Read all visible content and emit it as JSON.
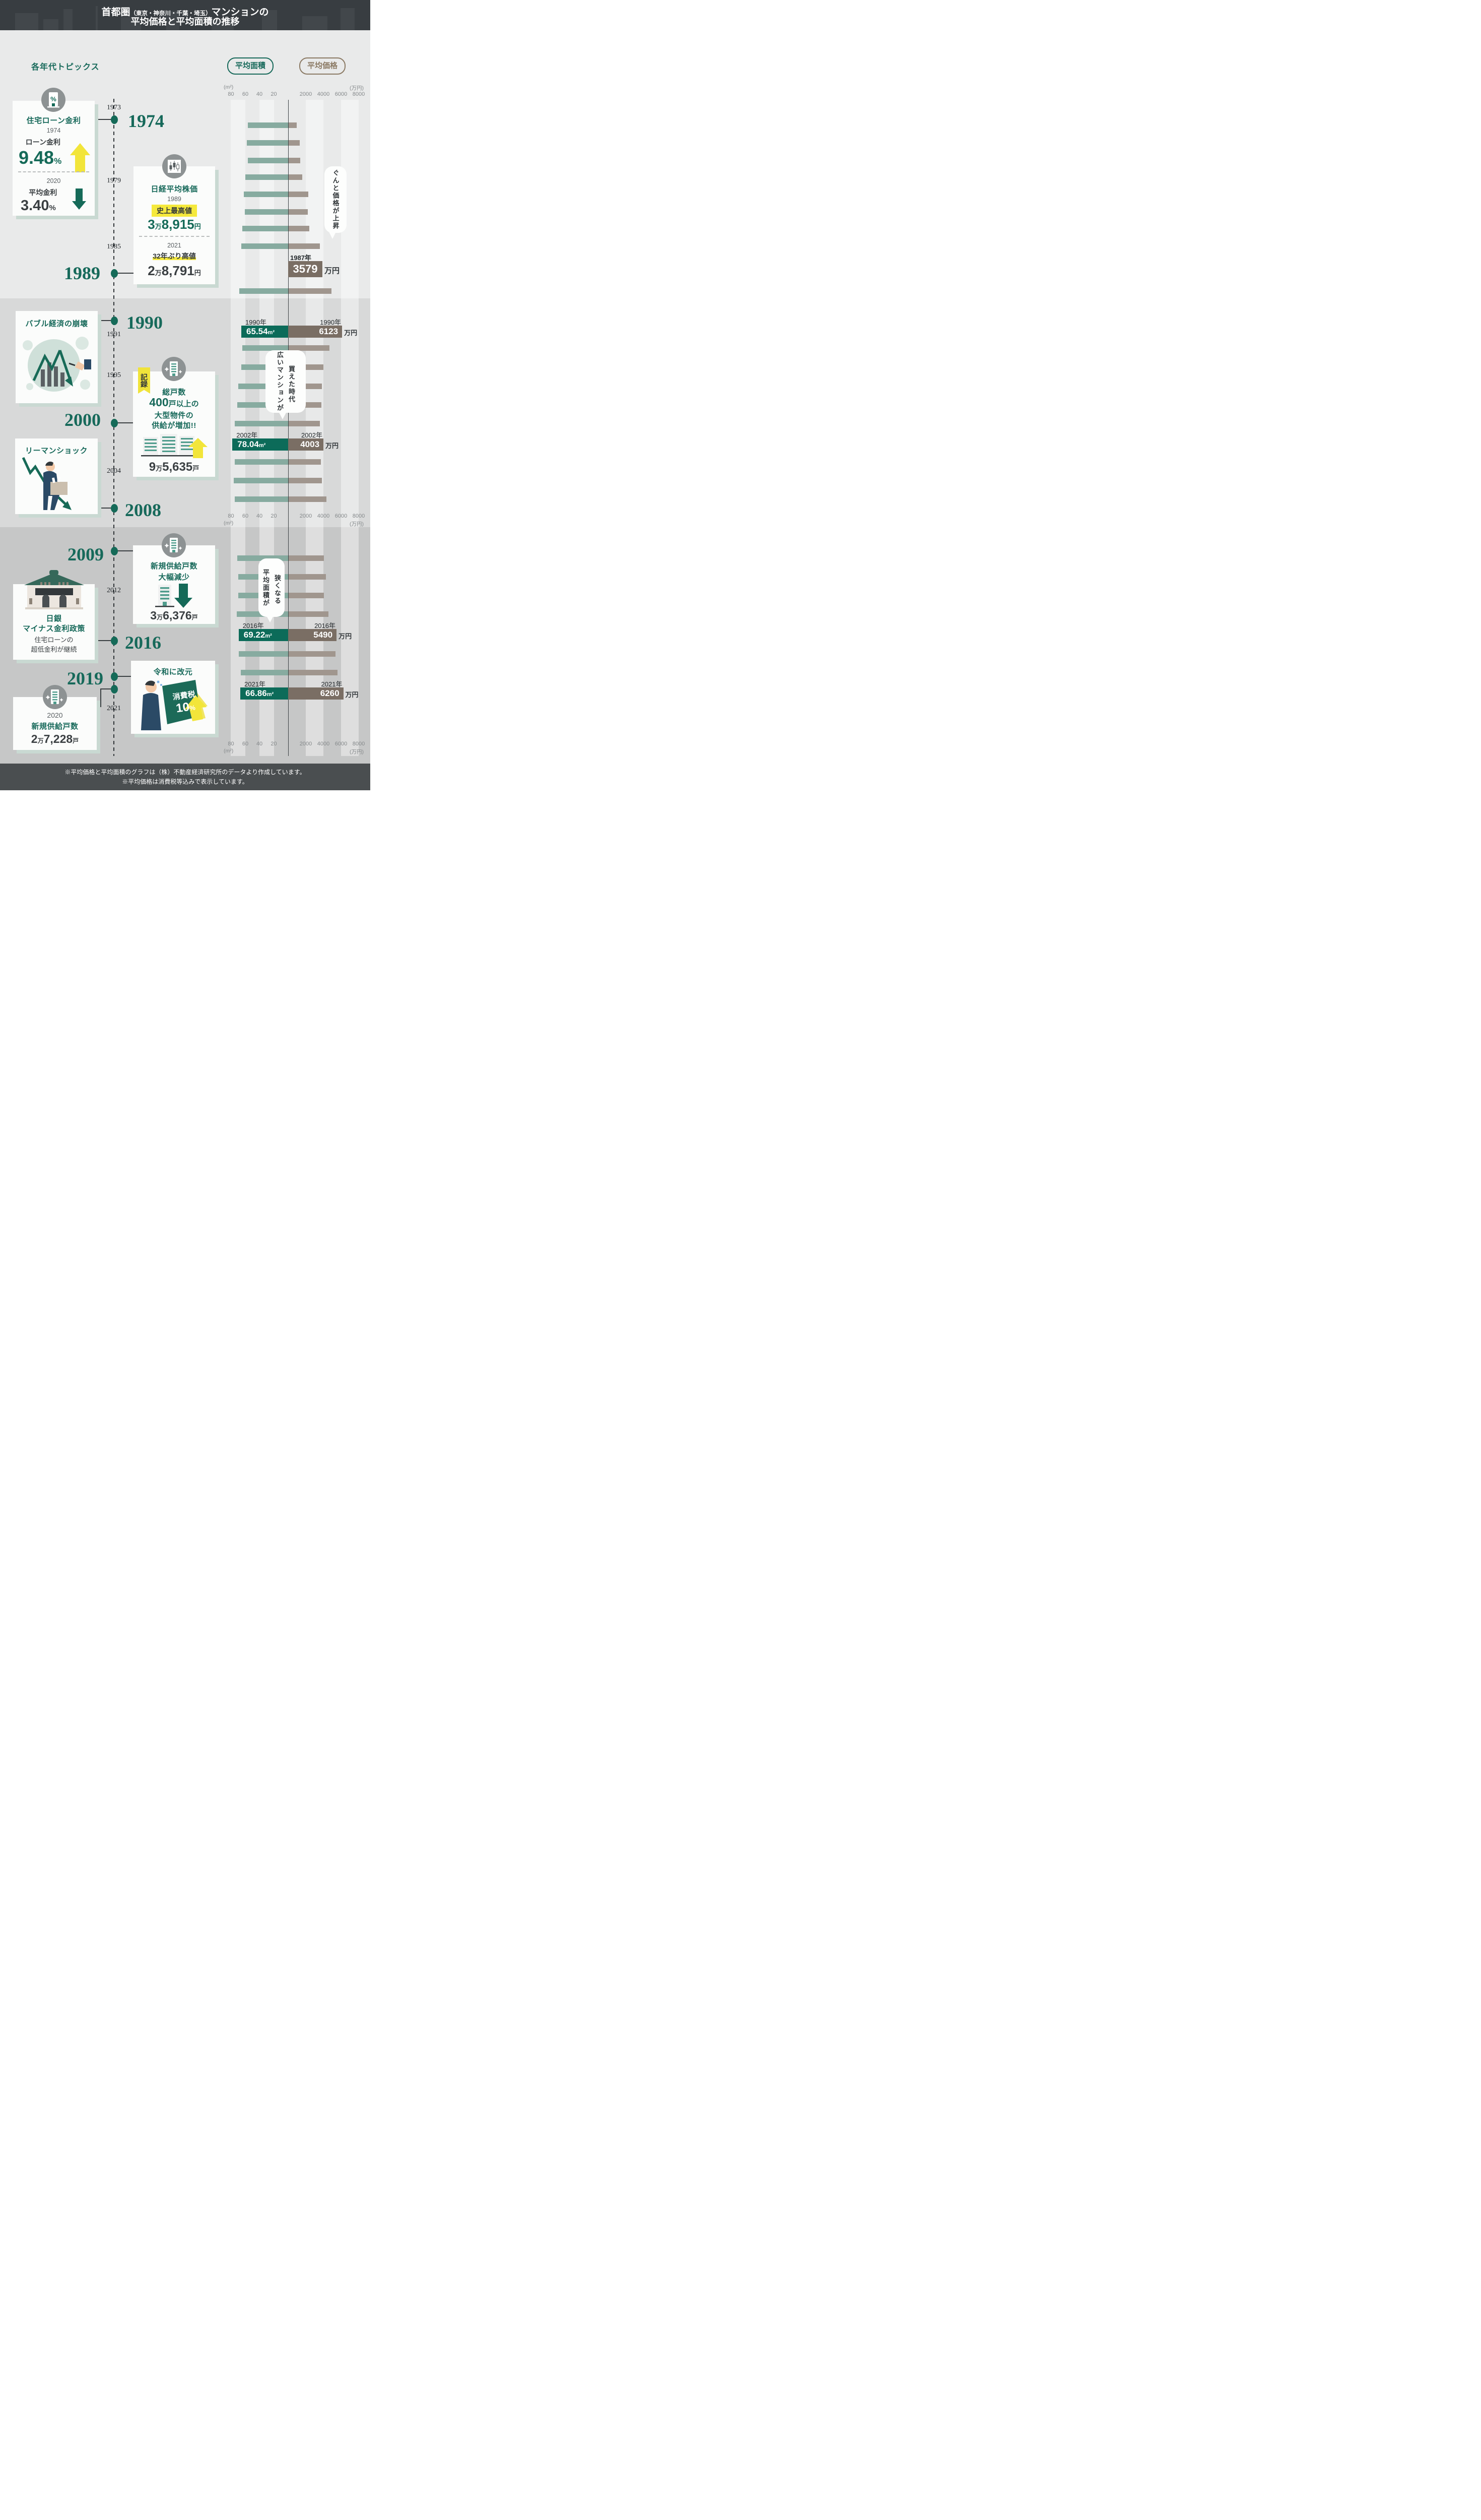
{
  "header": {
    "title_part1": "首都圏",
    "title_part2": "（東京・神奈川・千葉・埼玉）",
    "title_part3": "マンションの",
    "title_line2": "平均価格と平均面積の推移"
  },
  "topics_title": "各年代トピックス",
  "legend": {
    "area": "平均面積",
    "price": "平均価格"
  },
  "axis": {
    "area_unit": "(m²)",
    "price_unit": "(万円)",
    "area_ticks": [
      "80",
      "60",
      "40",
      "20"
    ],
    "price_ticks": [
      "2000",
      "4000",
      "6000",
      "8000"
    ]
  },
  "timeline": [
    {
      "year": "1973",
      "style": "small"
    },
    {
      "year": "1974",
      "style": "big",
      "dot": true
    },
    {
      "year": "1979",
      "style": "small"
    },
    {
      "year": "1985",
      "style": "small"
    },
    {
      "year": "1989",
      "style": "big",
      "dot": true
    },
    {
      "year": "1990",
      "style": "big",
      "dot": true
    },
    {
      "year": "1991",
      "style": "small"
    },
    {
      "year": "1995",
      "style": "small"
    },
    {
      "year": "2000",
      "style": "big",
      "dot": true
    },
    {
      "year": "2004",
      "style": "small"
    },
    {
      "year": "2008",
      "style": "big",
      "dot": true
    },
    {
      "year": "2009",
      "style": "big",
      "dot": true
    },
    {
      "year": "2012",
      "style": "small"
    },
    {
      "year": "2016",
      "style": "big",
      "dot": true
    },
    {
      "year": "2019",
      "style": "big",
      "dot": true
    },
    {
      "year": "2021",
      "style": "small"
    }
  ],
  "cards": {
    "loan_rate": {
      "title": "住宅ローン金利",
      "year1": "1974",
      "label1": "ローン金利",
      "value1": "9.48",
      "unit1": "%",
      "year2": "2020",
      "label2": "平均金利",
      "value2": "3.40",
      "unit2": "%"
    },
    "nikkei": {
      "title": "日経平均株価",
      "year1": "1989",
      "badge1": "史上最高値",
      "value1_num1": "3",
      "value1_unit1": "万",
      "value1_num2": "8,915",
      "value1_unit2": "円",
      "year2": "2021",
      "badge2": "32年ぶり高値",
      "value2_num1": "2",
      "value2_unit1": "万",
      "value2_num2": "8,791",
      "value2_unit2": "円"
    },
    "bubble": {
      "title": "バブル経済の崩壊"
    },
    "record": {
      "ribbon": "記録",
      "line1": "総戸数",
      "line2_num": "400",
      "line2_rest": "戸以上の",
      "line3": "大型物件の",
      "line4": "供給が増加!!",
      "value_num1": "9",
      "value_unit1": "万",
      "value_num2": "5,635",
      "value_unit2": "戸"
    },
    "lehman": {
      "title": "リーマンショック"
    },
    "supply_drop": {
      "line1": "新規供給戸数",
      "line2": "大幅減少",
      "value_num1": "3",
      "value_unit1": "万",
      "value_num2": "6,376",
      "value_unit2": "戸"
    },
    "boj": {
      "line1": "日銀",
      "line2": "マイナス金利政策",
      "sub1": "住宅ローンの",
      "sub2": "超低金利が継続"
    },
    "reiwa": {
      "title": "令和に改元",
      "board_line1": "消費税",
      "board_value": "10",
      "board_unit": "%"
    },
    "supply_2020": {
      "year": "2020",
      "title": "新規供給戸数",
      "value_num1": "2",
      "value_unit1": "万",
      "value_num2": "7,228",
      "value_unit2": "戸"
    }
  },
  "callouts": {
    "bubble1": [
      "ぐんと価格が上昇"
    ],
    "bubble2": [
      "広いマンションが",
      "買えた時代"
    ],
    "bubble3": [
      "平均面積が",
      "狭くなる"
    ]
  },
  "chart_data": {
    "type": "bar",
    "title": "首都圏マンションの平均価格と平均面積の推移",
    "orientation": "horizontal-bidirectional",
    "series": [
      {
        "name": "平均面積",
        "unit": "m²",
        "direction": "left",
        "axis_range": [
          0,
          80
        ],
        "color": "#87aba0",
        "highlight_color": "#0c6b59"
      },
      {
        "name": "平均価格",
        "unit": "万円",
        "direction": "right",
        "axis_range": [
          0,
          8000
        ],
        "color": "#a0968e",
        "highlight_color": "#7a6e64"
      }
    ],
    "sections": [
      {
        "period": "1973-1989",
        "rows": [
          {
            "year": 1973,
            "area": 56.4,
            "price": 970
          },
          {
            "year": 1975,
            "area": 58.1,
            "price": 1290
          },
          {
            "year": 1977,
            "area": 56.4,
            "price": 1370
          },
          {
            "year": 1979,
            "area": 60.1,
            "price": 1590
          },
          {
            "year": 1981,
            "area": 61.7,
            "price": 2290
          },
          {
            "year": 1983,
            "area": 60.6,
            "price": 2230
          },
          {
            "year": 1985,
            "area": 64.0,
            "price": 2390
          },
          {
            "year": 1987,
            "area": 65.6,
            "price": 3579,
            "price_callout": {
              "year_text": "1987年",
              "value": "3579",
              "unit": "万円"
            }
          },
          {
            "year": 1989,
            "area": 68.7,
            "price": 4940
          }
        ]
      },
      {
        "period": "1990-2008",
        "rows": [
          {
            "year": 1990,
            "area": 65.54,
            "price": 6123,
            "highlight": true,
            "year_text": "1990年",
            "area_label": "65.54",
            "area_unit": "m²",
            "price_label": "6123",
            "price_unit": "万円"
          },
          {
            "year": 1992,
            "area": 63.9,
            "price": 4670
          },
          {
            "year": 1994,
            "area": 65.6,
            "price": 3980
          },
          {
            "year": 1996,
            "area": 69.6,
            "price": 3840
          },
          {
            "year": 1998,
            "area": 71.3,
            "price": 3760
          },
          {
            "year": 2000,
            "area": 74.9,
            "price": 3600
          },
          {
            "year": 2002,
            "area": 78.04,
            "price": 4003,
            "highlight": true,
            "year_text": "2002年",
            "area_label": "78.04",
            "area_unit": "m²",
            "price_label": "4003",
            "price_unit": "万円"
          },
          {
            "year": 2004,
            "area": 74.9,
            "price": 3740
          },
          {
            "year": 2006,
            "area": 75.9,
            "price": 3800
          },
          {
            "year": 2008,
            "area": 74.9,
            "price": 4360
          }
        ]
      },
      {
        "period": "2009-2021",
        "rows": [
          {
            "year": 2009,
            "area": 71.0,
            "price": 4030
          },
          {
            "year": 2011,
            "area": 69.6,
            "price": 4300
          },
          {
            "year": 2013,
            "area": 69.6,
            "price": 4060
          },
          {
            "year": 2015,
            "area": 71.6,
            "price": 4570
          },
          {
            "year": 2016,
            "area": 69.22,
            "price": 5490,
            "highlight": true,
            "year_text": "2016年",
            "area_label": "69.22",
            "area_unit": "m²",
            "price_label": "5490",
            "price_unit": "万円"
          },
          {
            "year": 2018,
            "area": 68.9,
            "price": 5370
          },
          {
            "year": 2020,
            "area": 66.3,
            "price": 5590
          },
          {
            "year": 2021,
            "area": 66.86,
            "price": 6260,
            "highlight": true,
            "year_text": "2021年",
            "area_label": "66.86",
            "area_unit": "m²",
            "price_label": "6260",
            "price_unit": "万円"
          }
        ]
      }
    ],
    "xlabel_left": "(m²)",
    "xlabel_right": "(万円)",
    "legend_position": "top"
  },
  "footer": {
    "note1": "※平均価格と平均面積のグラフは（株）不動産経済研究所のデータより作成しています。",
    "note2": "※平均価格は消費税等込みで表示しています。"
  }
}
